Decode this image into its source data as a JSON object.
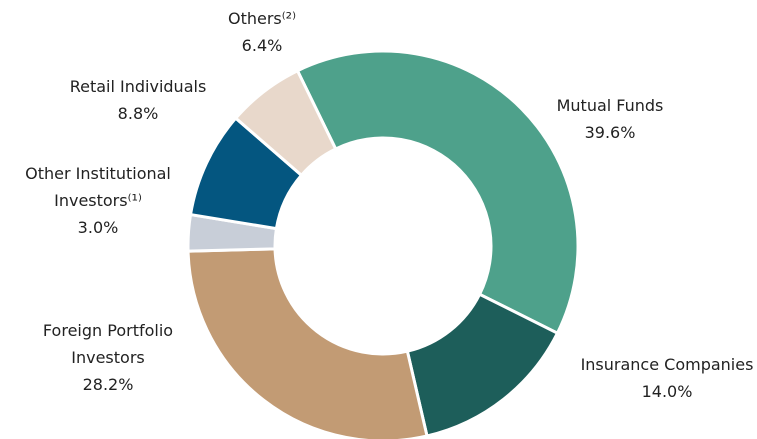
{
  "chart_data": {
    "type": "donut",
    "categories": [
      "Mutual Funds",
      "Insurance Companies",
      "Foreign Portfolio Investors",
      "Other Institutional Investors⁽¹⁾",
      "Retail Individuals",
      "Others⁽²⁾"
    ],
    "values": [
      39.6,
      14.0,
      28.2,
      3.0,
      8.8,
      6.4
    ],
    "value_labels": [
      "39.6%",
      "14.0%",
      "28.2%",
      "3.0%",
      "8.8%",
      "6.4%"
    ],
    "colors": [
      "#4ea18b",
      "#1d5e5a",
      "#c29b74",
      "#c8ced8",
      "#045680",
      "#e8d8cb"
    ]
  }
}
